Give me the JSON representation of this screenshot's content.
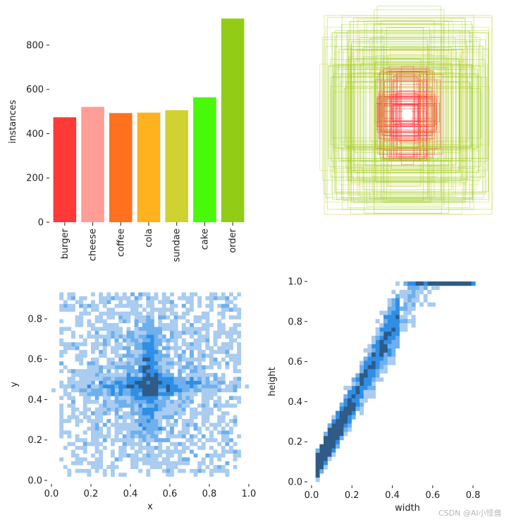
{
  "chart_data": [
    {
      "type": "bar",
      "categories": [
        "burger",
        "cheese",
        "coffee",
        "cola",
        "sundae",
        "cake",
        "order"
      ],
      "values": [
        474,
        521,
        493,
        495,
        506,
        564,
        920
      ],
      "colors": [
        "#ff3838",
        "#ff9d97",
        "#ff701f",
        "#ffb21d",
        "#cfd231",
        "#48f90a",
        "#92cc17"
      ],
      "xlabel": "",
      "ylabel": "instances",
      "yticks": [
        0,
        200,
        400,
        600,
        800
      ],
      "ylim": [
        0,
        940
      ],
      "grid": false
    },
    {
      "type": "heatmap",
      "subtype": "box-outline-overlay",
      "outline_colors": [
        "#ff3838",
        "#92cc17",
        "#cfd231"
      ],
      "axes_visible": false
    },
    {
      "type": "heatmap",
      "subtype": "2d-histogram",
      "xlabel": "x",
      "ylabel": "y",
      "xticks": [
        "0.0",
        "0.2",
        "0.4",
        "0.6",
        "0.8",
        "1.0"
      ],
      "yticks": [
        "0.0",
        "0.2",
        "0.4",
        "0.6",
        "0.8"
      ],
      "xlim": [
        0,
        1
      ],
      "ylim": [
        0,
        0.95
      ],
      "colors": [
        "#a9ccf0",
        "#6fb0ec",
        "#2f8ee6",
        "#2f5b86"
      ],
      "grid": false
    },
    {
      "type": "heatmap",
      "subtype": "2d-histogram",
      "xlabel": "width",
      "ylabel": "height",
      "xticks": [
        "0.0",
        "0.2",
        "0.4",
        "0.6",
        "0.8"
      ],
      "yticks": [
        "0.0",
        "0.2",
        "0.4",
        "0.6",
        "0.8",
        "1.0"
      ],
      "xlim": [
        0,
        0.95
      ],
      "ylim": [
        0,
        1.0
      ],
      "colors": [
        "#a9ccf0",
        "#6fb0ec",
        "#2f8ee6",
        "#2f5b86"
      ],
      "grid": false
    }
  ],
  "watermark": "CSDN @AI小怪兽"
}
